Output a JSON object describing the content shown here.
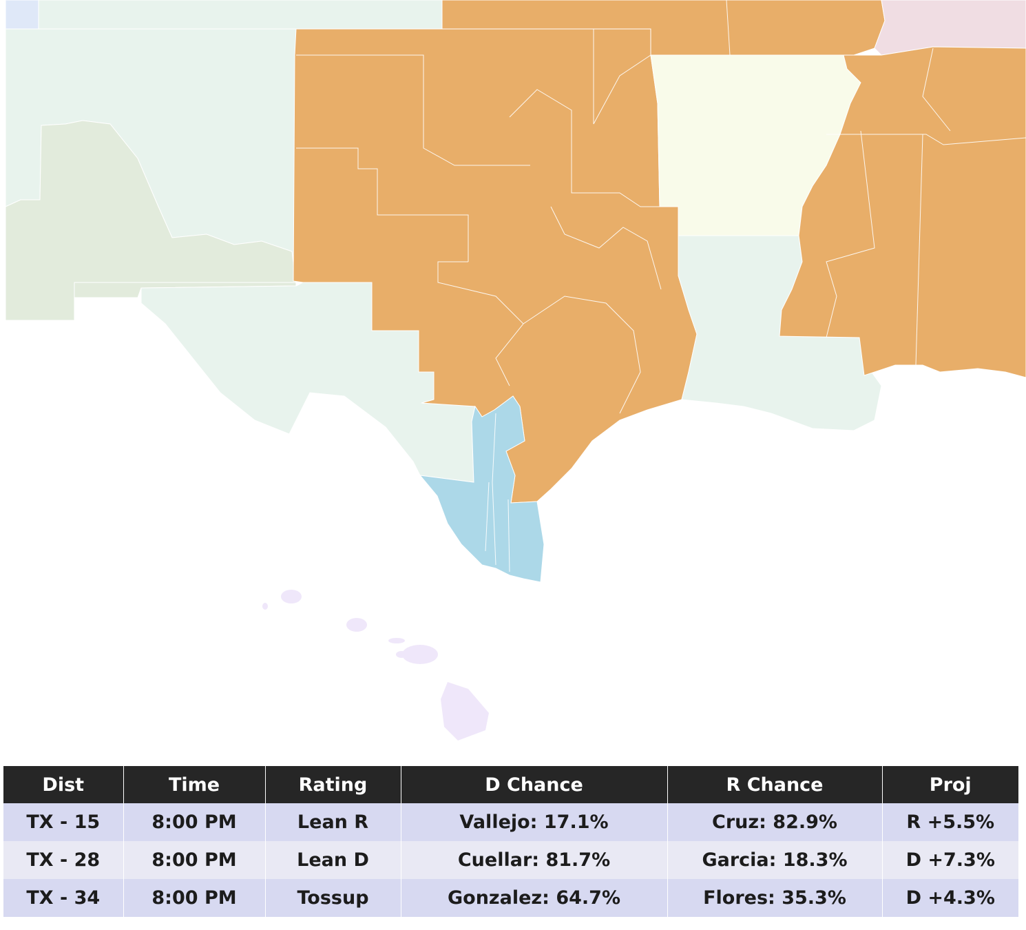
{
  "map": {
    "colors": {
      "background": "#ffffff",
      "other_states": "#e8f3ed",
      "arizona_new_mexico": "#e2ebdc",
      "republican_hold": "#e8ae69",
      "democrat_hold": "#acd8e8",
      "arkansas": "#f9fbea",
      "tennessee_kentucky": "#f0dde3",
      "colorado_kansas_corner": "#dfe8f8",
      "hawaii": "#efe7fa",
      "district_border": "#ffffff"
    }
  },
  "table": {
    "headers": [
      "Dist",
      "Time",
      "Rating",
      "D Chance",
      "R Chance",
      "Proj"
    ],
    "rows": [
      [
        "TX - 15",
        "8:00 PM",
        "Lean R",
        "Vallejo: 17.1%",
        "Cruz: 82.9%",
        "R +5.5%"
      ],
      [
        "TX - 28",
        "8:00 PM",
        "Lean D",
        "Cuellar: 81.7%",
        "Garcia: 18.3%",
        "D +7.3%"
      ],
      [
        "TX - 34",
        "8:00 PM",
        "Tossup",
        "Gonzalez: 64.7%",
        "Flores: 35.3%",
        "D +4.3%"
      ]
    ],
    "colors": {
      "header_bg": "#262626",
      "header_text": "#ffffff",
      "row_odd_bg": "#d7d9f1",
      "row_even_bg": "#e9e9f4",
      "cell_text": "#1c1c1c"
    }
  }
}
